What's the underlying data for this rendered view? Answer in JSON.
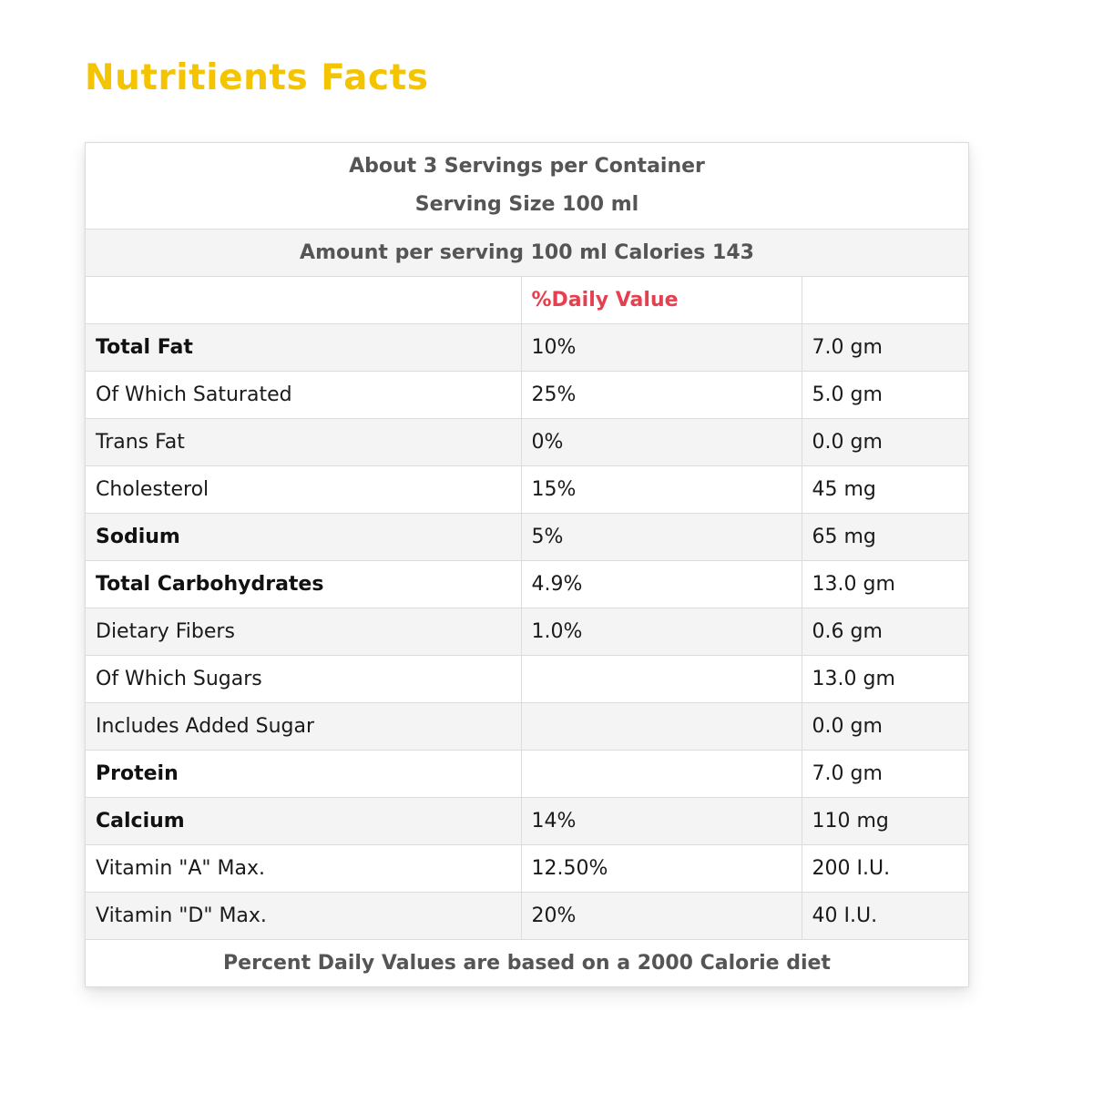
{
  "page_title": "Nutritients Facts",
  "colors": {
    "title": "#f5c400",
    "daily_value_header": "#e5404f",
    "header_text": "#555555"
  },
  "table": {
    "servings_line": "About 3 Servings per Container",
    "serving_size_line": "Serving Size 100 ml",
    "amount_line": "Amount per serving 100 ml Calories 143",
    "daily_value_header": "%Daily Value",
    "rows": [
      {
        "name": "Total Fat",
        "bold": true,
        "dv": "10%",
        "amount": "7.0 gm"
      },
      {
        "name": "Of Which Saturated",
        "bold": false,
        "dv": "25%",
        "amount": "5.0 gm"
      },
      {
        "name": "Trans Fat",
        "bold": false,
        "dv": "0%",
        "amount": "0.0 gm"
      },
      {
        "name": "Cholesterol",
        "bold": false,
        "dv": "15%",
        "amount": "45 mg"
      },
      {
        "name": "Sodium",
        "bold": true,
        "dv": "5%",
        "amount": "65 mg"
      },
      {
        "name": "Total Carbohydrates",
        "bold": true,
        "dv": "4.9%",
        "amount": "13.0 gm"
      },
      {
        "name": "Dietary Fibers",
        "bold": false,
        "dv": "1.0%",
        "amount": "0.6 gm"
      },
      {
        "name": "Of Which Sugars",
        "bold": false,
        "dv": "",
        "amount": "13.0 gm"
      },
      {
        "name": "Includes Added Sugar",
        "bold": false,
        "dv": "",
        "amount": "0.0 gm"
      },
      {
        "name": "Protein",
        "bold": true,
        "dv": "",
        "amount": "7.0 gm"
      },
      {
        "name": "Calcium",
        "bold": true,
        "dv": "14%",
        "amount": "110 mg"
      },
      {
        "name": "Vitamin \"A\" Max.",
        "bold": false,
        "dv": "12.50%",
        "amount": "200 I.U."
      },
      {
        "name": "Vitamin \"D\" Max.",
        "bold": false,
        "dv": "20%",
        "amount": "40 I.U."
      }
    ],
    "footer_line": "Percent Daily Values are based on a 2000 Calorie diet"
  }
}
